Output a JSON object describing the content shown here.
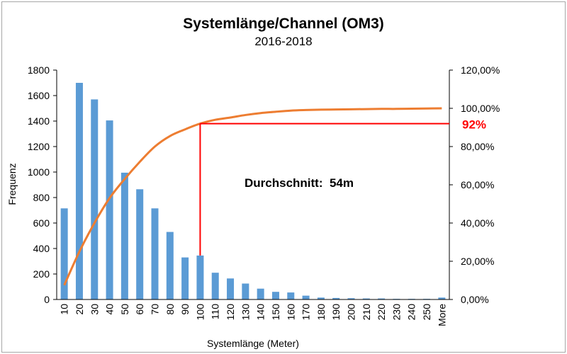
{
  "chart_data": {
    "type": "bar",
    "title": "Systemlänge/Channel (OM3)",
    "subtitle": "2016-2018",
    "xlabel": "Systemlänge (Meter)",
    "ylabel": "Frequenz",
    "ylim": [
      0,
      1800
    ],
    "y_ticks": [
      "0",
      "200",
      "400",
      "600",
      "800",
      "1000",
      "1200",
      "1400",
      "1600",
      "1800"
    ],
    "y2lim": [
      0,
      1.2
    ],
    "y2_ticks": [
      "0,00%",
      "20,00%",
      "40,00%",
      "60,00%",
      "80,00%",
      "100,00%",
      "120,00%"
    ],
    "categories": [
      "10",
      "20",
      "30",
      "40",
      "50",
      "60",
      "70",
      "80",
      "90",
      "100",
      "110",
      "120",
      "130",
      "140",
      "150",
      "160",
      "170",
      "180",
      "190",
      "200",
      "210",
      "220",
      "230",
      "240",
      "250",
      "More"
    ],
    "series": [
      {
        "kind": "bar",
        "color": "#5b9bd5",
        "values": [
          715,
          1700,
          1570,
          1405,
          995,
          865,
          715,
          530,
          330,
          345,
          210,
          165,
          125,
          85,
          60,
          55,
          30,
          15,
          12,
          10,
          8,
          8,
          5,
          5,
          5,
          15
        ]
      },
      {
        "kind": "line",
        "axis": "secondary",
        "color": "#ed7d31",
        "values": [
          0.075,
          0.25,
          0.4,
          0.53,
          0.63,
          0.72,
          0.8,
          0.855,
          0.89,
          0.92,
          0.94,
          0.952,
          0.965,
          0.975,
          0.982,
          0.988,
          0.991,
          0.993,
          0.994,
          0.995,
          0.996,
          0.997,
          0.997,
          0.998,
          0.999,
          1.0
        ]
      }
    ],
    "marker": {
      "color": "#ff0000",
      "category": "100",
      "value": 0.92,
      "label": "92%"
    },
    "annotation": "Durchschnitt:  54m",
    "grid": false,
    "legend": "none"
  }
}
